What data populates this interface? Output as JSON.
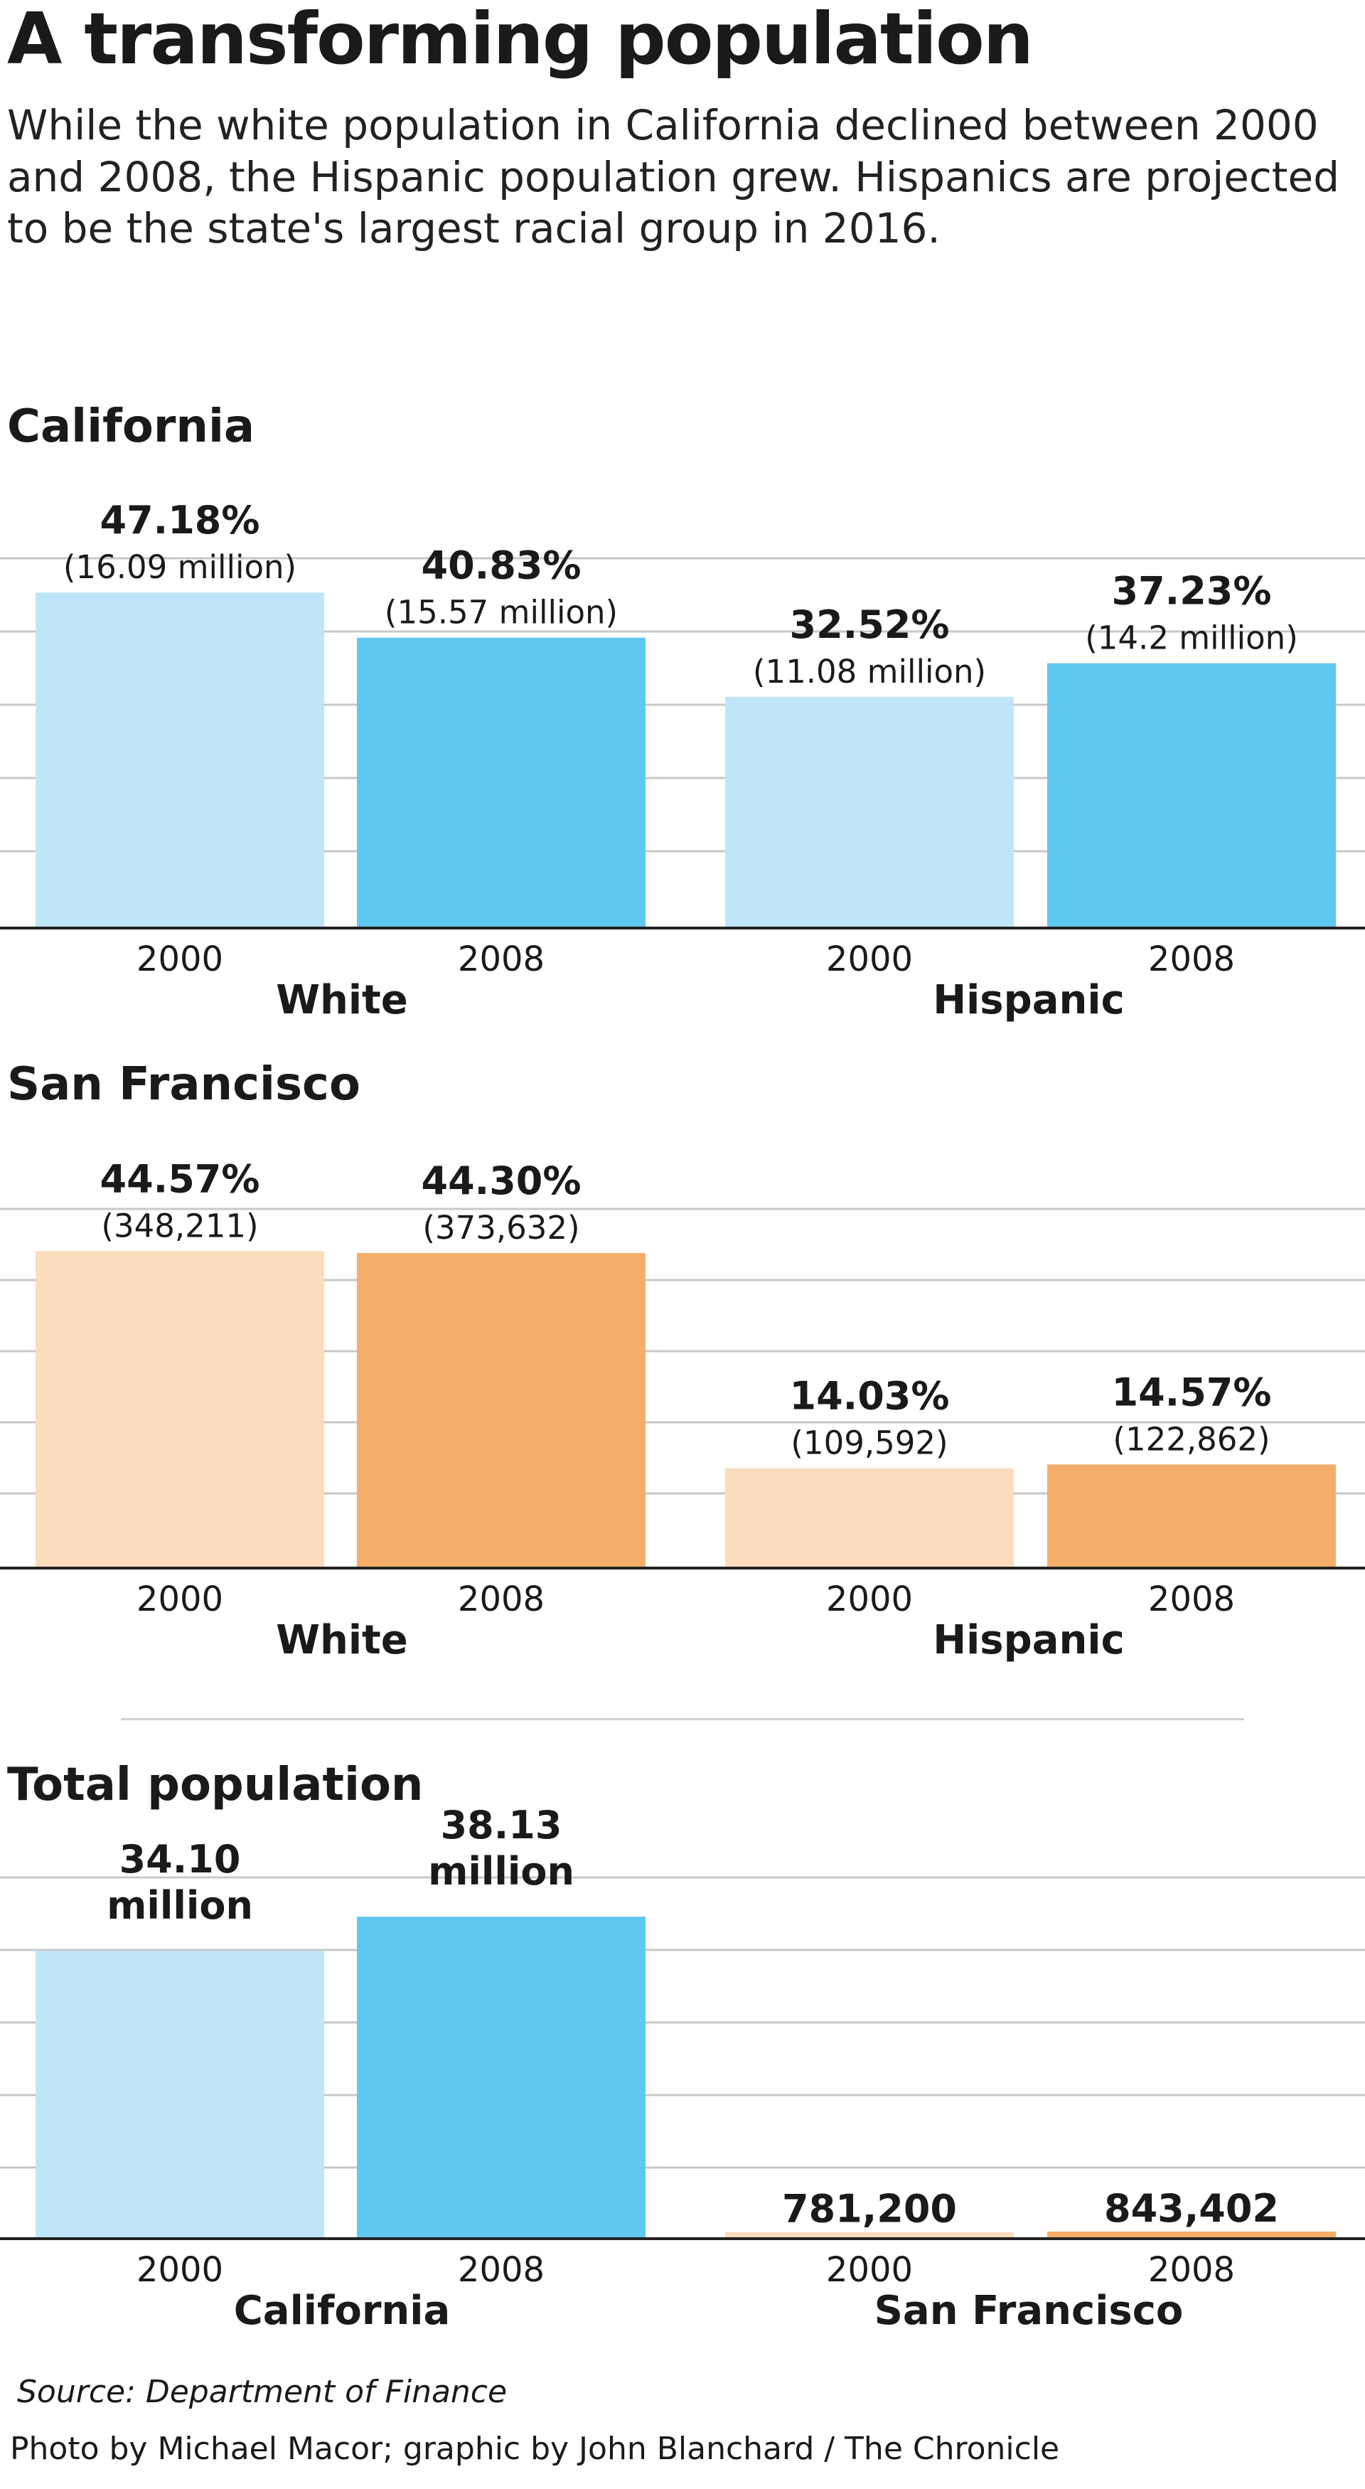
{
  "title": "A transforming population",
  "subtitle": "While the white population in California declined between 2000 and 2008, the Hispanic population grew. Hispanics are projected to be the state's largest racial group in 2016.",
  "colors": {
    "blue_light": "#bfe6f8",
    "blue_dark": "#5fc8f0",
    "orange_light": "#fbdcbc",
    "orange_dark": "#f5ae6a",
    "gridline": "#c8c8c8",
    "axis": "#222222",
    "separator": "#cfcfcf"
  },
  "chart_data": [
    {
      "type": "bar",
      "title": "California",
      "groups": [
        "White",
        "Hispanic"
      ],
      "categories": [
        "2000",
        "2008"
      ],
      "unit": "percent",
      "ylim": [
        0,
        50
      ],
      "series": [
        {
          "group": "White",
          "name": "2000",
          "value": 47.18,
          "label": "47.18%",
          "sublabel": "(16.09 million)",
          "color": "blue_light"
        },
        {
          "group": "White",
          "name": "2008",
          "value": 40.83,
          "label": "40.83%",
          "sublabel": "(15.57 million)",
          "color": "blue_dark"
        },
        {
          "group": "Hispanic",
          "name": "2000",
          "value": 32.52,
          "label": "32.52%",
          "sublabel": "(11.08 million)",
          "color": "blue_light"
        },
        {
          "group": "Hispanic",
          "name": "2008",
          "value": 37.23,
          "label": "37.23%",
          "sublabel": "(14.2 million)",
          "color": "blue_dark"
        }
      ]
    },
    {
      "type": "bar",
      "title": "San Francisco",
      "groups": [
        "White",
        "Hispanic"
      ],
      "categories": [
        "2000",
        "2008"
      ],
      "unit": "percent",
      "ylim": [
        0,
        50
      ],
      "series": [
        {
          "group": "White",
          "name": "2000",
          "value": 44.57,
          "label": "44.57%",
          "sublabel": "(348,211)",
          "color": "orange_light"
        },
        {
          "group": "White",
          "name": "2008",
          "value": 44.3,
          "label": "44.30%",
          "sublabel": "(373,632)",
          "color": "orange_dark"
        },
        {
          "group": "Hispanic",
          "name": "2000",
          "value": 14.03,
          "label": "14.03%",
          "sublabel": "(109,592)",
          "color": "orange_light"
        },
        {
          "group": "Hispanic",
          "name": "2008",
          "value": 14.57,
          "label": "14.57%",
          "sublabel": "(122,862)",
          "color": "orange_dark"
        }
      ]
    },
    {
      "type": "bar",
      "title": "Total population",
      "groups": [
        "California",
        "San Francisco"
      ],
      "categories": [
        "2000",
        "2008"
      ],
      "unit": "millions of people",
      "ylim": [
        0,
        40
      ],
      "series": [
        {
          "group": "California",
          "name": "2000",
          "value": 34.1,
          "label": "34.10",
          "sublabel": "million",
          "color": "blue_light"
        },
        {
          "group": "California",
          "name": "2008",
          "value": 38.13,
          "label": "38.13",
          "sublabel": "million",
          "color": "blue_dark"
        },
        {
          "group": "San Francisco",
          "name": "2000",
          "value": 0.7812,
          "label": "781,200",
          "sublabel": "",
          "color": "orange_light"
        },
        {
          "group": "San Francisco",
          "name": "2008",
          "value": 0.843402,
          "label": "843,402",
          "sublabel": "",
          "color": "orange_dark"
        }
      ]
    }
  ],
  "source": "Source: Department of Finance",
  "credit": "Photo by Michael Macor; graphic by John Blanchard / The Chronicle"
}
